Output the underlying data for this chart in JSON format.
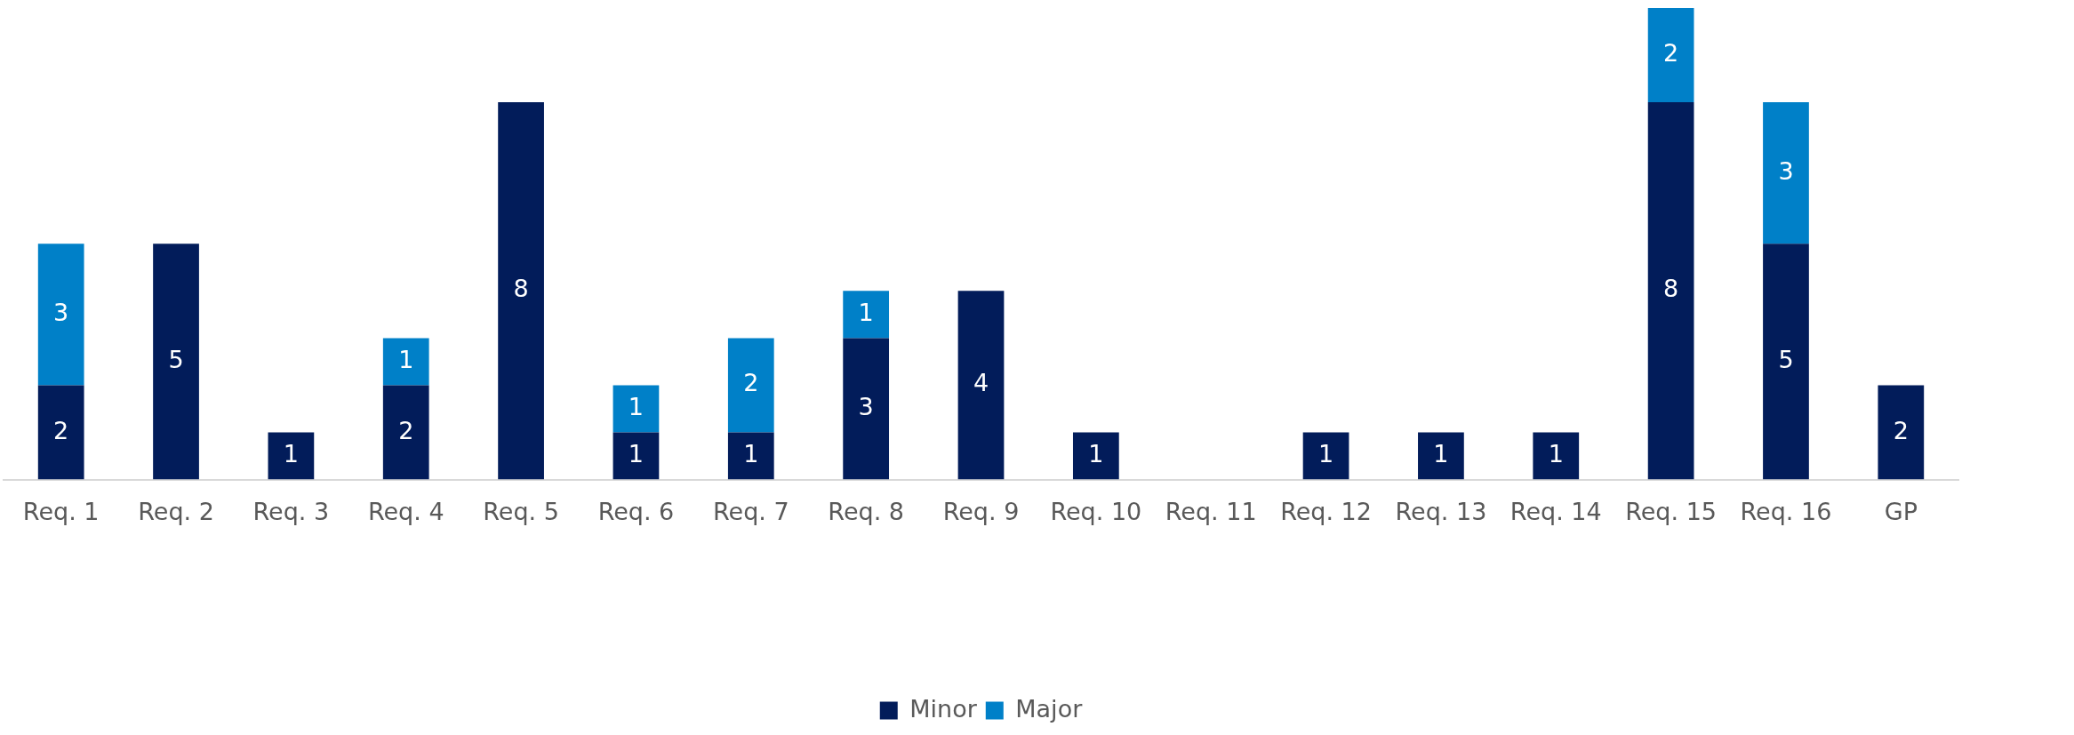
{
  "chart_data": {
    "type": "bar",
    "stacked": true,
    "data_labels": true,
    "legend": "bottom",
    "grid": false,
    "categories": [
      "Req. 1",
      "Req. 2",
      "Req. 3",
      "Req. 4",
      "Req. 5",
      "Req. 6",
      "Req. 7",
      "Req. 8",
      "Req. 9",
      "Req. 10",
      "Req. 11",
      "Req. 12",
      "Req. 13",
      "Req. 14",
      "Req. 15",
      "Req. 16",
      "GP"
    ],
    "series": [
      {
        "name": "Minor",
        "color": "#021c5a",
        "values": [
          2,
          5,
          1,
          2,
          8,
          1,
          1,
          3,
          4,
          1,
          null,
          1,
          1,
          1,
          8,
          5,
          2
        ]
      },
      {
        "name": "Major",
        "color": "#0080c8",
        "values": [
          3,
          null,
          null,
          1,
          null,
          1,
          2,
          1,
          null,
          null,
          null,
          null,
          null,
          null,
          2,
          3,
          null
        ]
      }
    ]
  }
}
